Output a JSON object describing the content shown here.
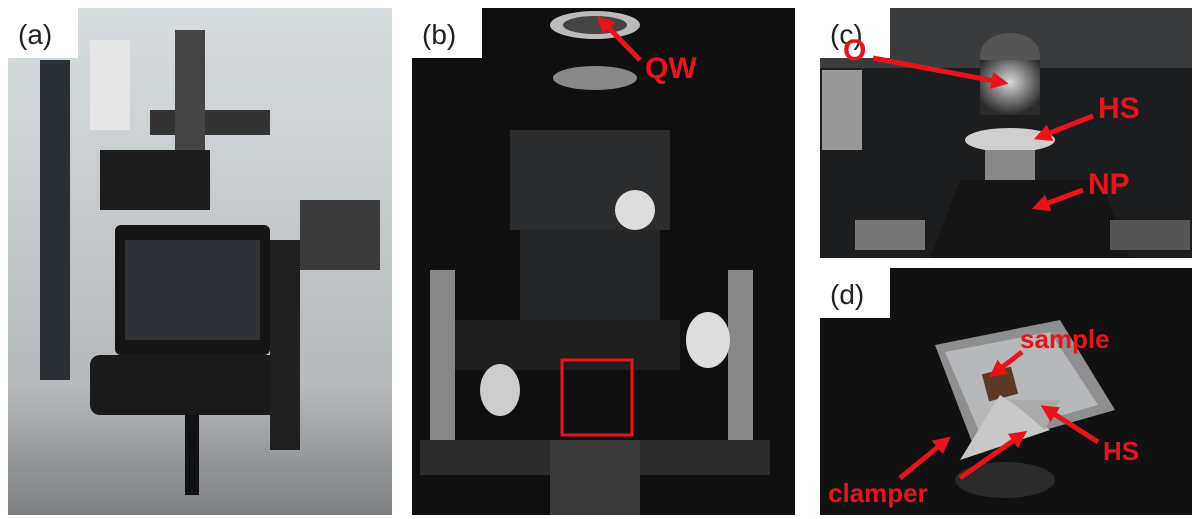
{
  "panels": [
    {
      "label": "(a)",
      "annotations": []
    },
    {
      "label": "(b)",
      "annotations": [
        "QW"
      ]
    },
    {
      "label": "(c)",
      "annotations": [
        "O",
        "HS",
        "NP"
      ]
    },
    {
      "label": "(d)",
      "annotations": [
        "sample",
        "HS",
        "clamper"
      ]
    }
  ]
}
